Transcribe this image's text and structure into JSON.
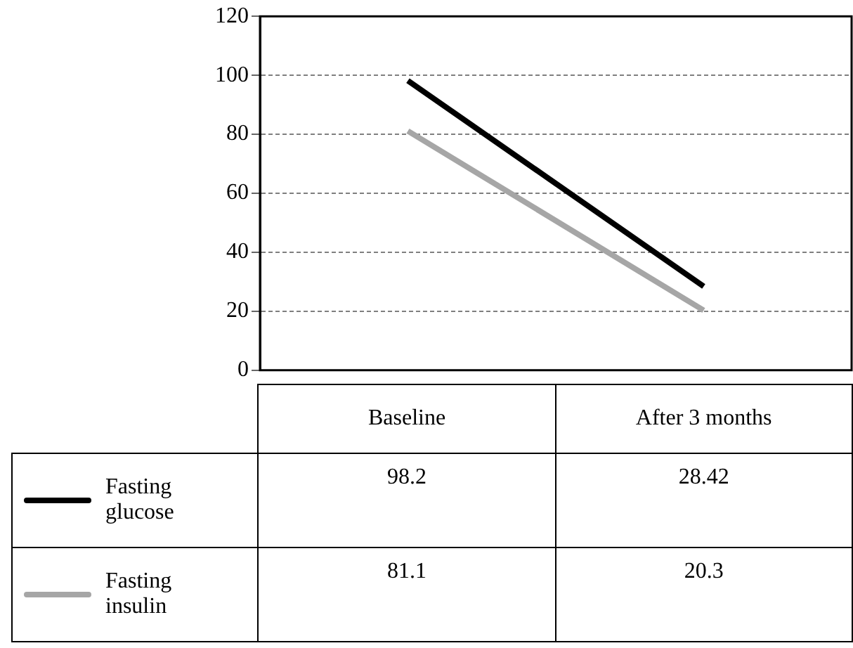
{
  "chart_data": {
    "type": "line",
    "categories": [
      "Baseline",
      "After 3 months"
    ],
    "series": [
      {
        "name": "Fasting glucose",
        "color": "#000000",
        "values": [
          98.2,
          28.42
        ]
      },
      {
        "name": "Fasting insulin",
        "color": "#a6a6a6",
        "values": [
          81.1,
          20.3
        ]
      }
    ],
    "ylim": [
      0,
      120
    ],
    "yticks": [
      0,
      20,
      40,
      60,
      80,
      100,
      120
    ],
    "grid": "y",
    "legend": "bottom left",
    "data_labels": true,
    "marker": "none",
    "line_style": "solid"
  }
}
